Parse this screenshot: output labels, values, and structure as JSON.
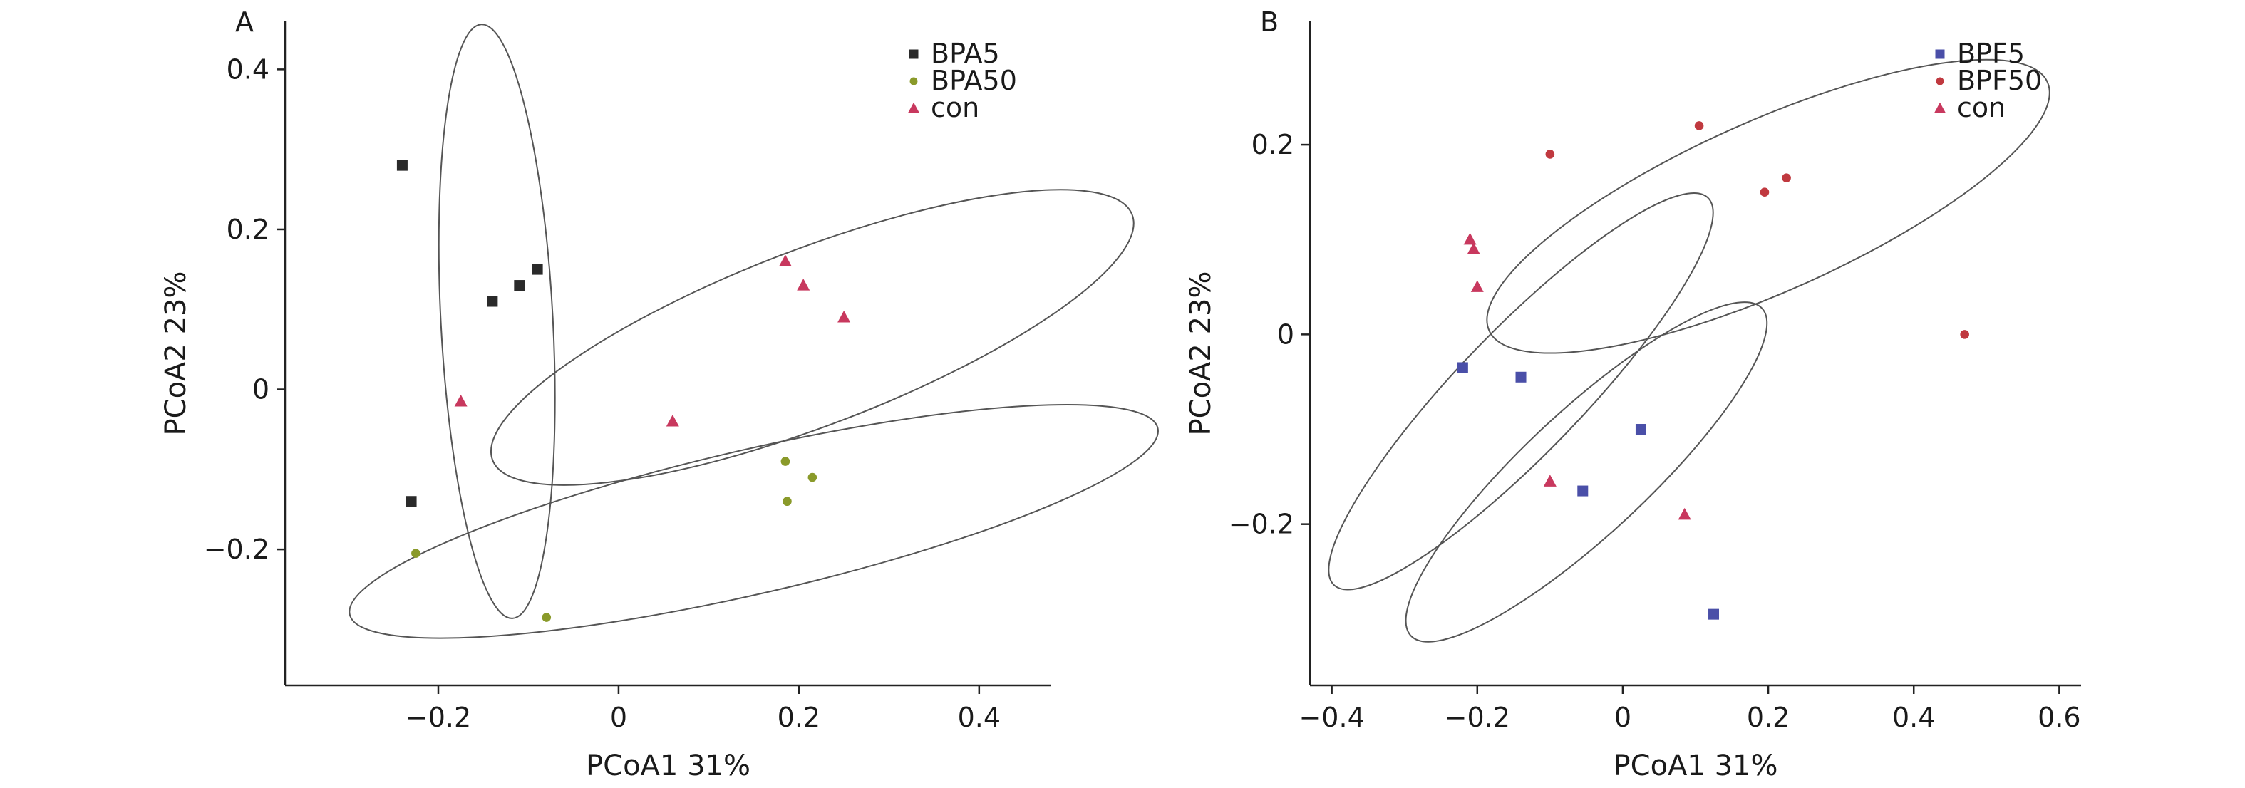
{
  "chart_data": [
    {
      "type": "scatter",
      "panel_label": "A",
      "xlabel": "PCoA1 31%",
      "ylabel": "PCoA2 23%",
      "xlim": [
        -0.37,
        0.48
      ],
      "ylim": [
        -0.37,
        0.46
      ],
      "x_ticks": [
        -0.2,
        0,
        0.2,
        0.4
      ],
      "x_tick_labels": [
        "−0.2",
        "0",
        "0.2",
        "0.4"
      ],
      "y_ticks": [
        -0.2,
        0,
        0.2,
        0.4
      ],
      "y_tick_labels": [
        "−0.2",
        "0",
        "0.2",
        "0.4"
      ],
      "legend_position": "top-right",
      "series": [
        {
          "name": "BPA5",
          "marker": "square",
          "color": "#2a2a2a",
          "points": [
            [
              -0.24,
              0.28
            ],
            [
              -0.14,
              0.11
            ],
            [
              -0.11,
              0.13
            ],
            [
              -0.09,
              0.15
            ],
            [
              -0.23,
              -0.14
            ]
          ]
        },
        {
          "name": "BPA50",
          "marker": "circle",
          "color": "#8a9a2a",
          "points": [
            [
              0.185,
              -0.09
            ],
            [
              0.187,
              -0.14
            ],
            [
              0.215,
              -0.11
            ],
            [
              -0.225,
              -0.205
            ],
            [
              -0.08,
              -0.285
            ]
          ]
        },
        {
          "name": "con",
          "marker": "triangle",
          "color": "#c8385e",
          "points": [
            [
              0.185,
              0.16
            ],
            [
              0.205,
              0.13
            ],
            [
              0.25,
              0.09
            ],
            [
              -0.175,
              -0.015
            ],
            [
              0.06,
              -0.04
            ]
          ]
        }
      ],
      "ellipses": [
        {
          "cx": -0.135,
          "cy": 0.085,
          "rx": 0.33,
          "ry": 0.07,
          "angle": 93
        },
        {
          "cx": 0.215,
          "cy": 0.065,
          "rx": 0.38,
          "ry": 0.11,
          "angle": 21
        },
        {
          "cx": 0.15,
          "cy": -0.165,
          "rx": 0.46,
          "ry": 0.09,
          "angle": 13
        }
      ]
    },
    {
      "type": "scatter",
      "panel_label": "B",
      "xlabel": "PCoA1 31%",
      "ylabel": "PCoA2 23%",
      "xlim": [
        -0.43,
        0.63
      ],
      "ylim": [
        -0.37,
        0.33
      ],
      "x_ticks": [
        -0.4,
        -0.2,
        0,
        0.2,
        0.4,
        0.6
      ],
      "x_tick_labels": [
        "−0.4",
        "−0.2",
        "0",
        "0.2",
        "0.4",
        "0.6"
      ],
      "y_ticks": [
        -0.2,
        0,
        0.2
      ],
      "y_tick_labels": [
        "−0.2",
        "0",
        "0.2"
      ],
      "legend_position": "top-right",
      "series": [
        {
          "name": "BPF5",
          "marker": "square",
          "color": "#4a4fa8",
          "points": [
            [
              -0.22,
              -0.035
            ],
            [
              -0.14,
              -0.045
            ],
            [
              0.025,
              -0.1
            ],
            [
              -0.055,
              -0.165
            ],
            [
              0.125,
              -0.295
            ]
          ]
        },
        {
          "name": "BPF50",
          "marker": "circle",
          "color": "#c0393f",
          "points": [
            [
              -0.1,
              0.19
            ],
            [
              0.105,
              0.22
            ],
            [
              0.195,
              0.15
            ],
            [
              0.225,
              0.165
            ],
            [
              0.47,
              0.0
            ]
          ]
        },
        {
          "name": "con",
          "marker": "triangle",
          "color": "#c8385e",
          "points": [
            [
              -0.21,
              0.1
            ],
            [
              -0.205,
              0.09
            ],
            [
              -0.2,
              0.05
            ],
            [
              -0.1,
              -0.155
            ],
            [
              0.085,
              -0.19
            ]
          ]
        }
      ],
      "ellipses": [
        {
          "cx": 0.2,
          "cy": 0.135,
          "rx": 0.42,
          "ry": 0.09,
          "angle": 24
        },
        {
          "cx": -0.14,
          "cy": -0.06,
          "rx": 0.37,
          "ry": 0.065,
          "angle": 46
        },
        {
          "cx": -0.05,
          "cy": -0.145,
          "rx": 0.33,
          "ry": 0.065,
          "angle": 43
        }
      ]
    }
  ]
}
